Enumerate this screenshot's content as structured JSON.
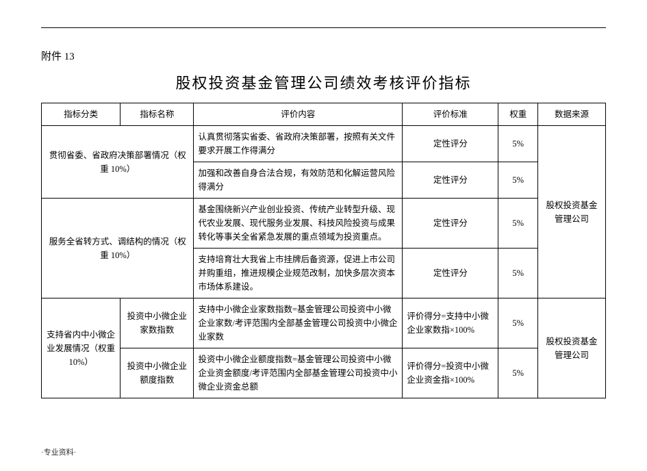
{
  "doc": {
    "attachment_label": "附件 13",
    "title": "股权投资基金管理公司绩效考核评价指标",
    "footer": "·专业资料·"
  },
  "columns": {
    "category": "指标分类",
    "name": "指标名称",
    "eval_content": "评价内容",
    "eval_standard": "评价标准",
    "weight": "权重",
    "source": "数据来源"
  },
  "rows": {
    "r1": {
      "category": "贯彻省委、省政府决策部署情况（权重 10%）",
      "eval_content": "认真贯彻落实省委、省政府决策部署，按照有关文件要求开展工作得满分",
      "eval_standard": "定性评分",
      "weight": "5%"
    },
    "r2": {
      "eval_content": "加强和改善自身合法合规，有效防范和化解运营风险得满分",
      "eval_standard": "定性评分",
      "weight": "5%"
    },
    "r3": {
      "category": "服务全省转方式、调结构的情况（权重 10%）",
      "eval_content": "基金围绕新兴产业创业投资、传统产业转型升级、现代农业发展、现代服务业发展、科技风险投资与成果转化等事关全省紧急发展的重点领域为投资重点。",
      "eval_standard": "定性评分",
      "weight": "5%",
      "source": "股权投资基金管理公司"
    },
    "r4": {
      "eval_content": "支持培育壮大我省上市挂牌后备资源，促进上市公司并购重组，推进规模企业规范改制，加快多层次资本市场体系建设。",
      "eval_standard": "定性评分",
      "weight": "5%"
    },
    "r5": {
      "category": "支持省内中小微企业发展情况（权重 10%）",
      "name": "投资中小微企业家数指数",
      "eval_content": "支持中小微企业家数指数=基金管理公司投资中小微企业家数/考评范围内全部基金管理公司投资中小微企业家数",
      "eval_standard": "评价得分=支持中小微企业家数指×100%",
      "weight": "5%",
      "source": "股权投资基金管理公司"
    },
    "r6": {
      "name": "投资中小微企业额度指数",
      "eval_content": "投资中小微企业额度指数=基金管理公司投资中小微企业资金额度/考评范围内全部基金管理公司投资中小微企业资金总额",
      "eval_standard": "评价得分=投资中小微企业资金指×100%",
      "weight": "5%"
    }
  },
  "style": {
    "font_family": "SimSun",
    "title_fontsize_pt": 18,
    "body_fontsize_pt": 10,
    "border_color": "#000000",
    "background_color": "#ffffff",
    "text_color": "#000000"
  }
}
